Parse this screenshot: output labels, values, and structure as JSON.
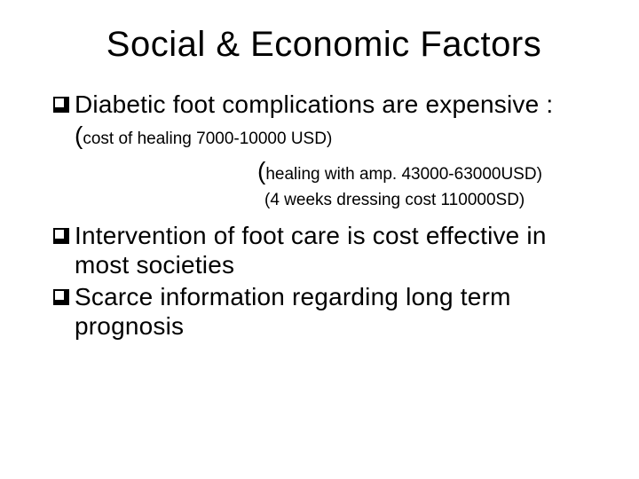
{
  "title": "Social & Economic Factors",
  "bullets": {
    "b1": "Diabetic foot complications are expensive :",
    "b1_sub1_paren": "(",
    "b1_sub1_text": "cost of healing 7000-10000 USD)",
    "b1_sub2_paren": "(",
    "b1_sub2_text": "healing with amp. 43000-63000USD)",
    "b1_sub3": "(4 weeks dressing cost 110000SD)",
    "b2": "Intervention of foot care is cost effective in most societies",
    "b3": "Scarce information regarding long term prognosis"
  },
  "style": {
    "background_color": "#ffffff",
    "text_color": "#000000",
    "title_fontsize": 40,
    "bullet_fontsize": 28,
    "sub_small_fontsize": 19,
    "font_family": "Arial"
  }
}
